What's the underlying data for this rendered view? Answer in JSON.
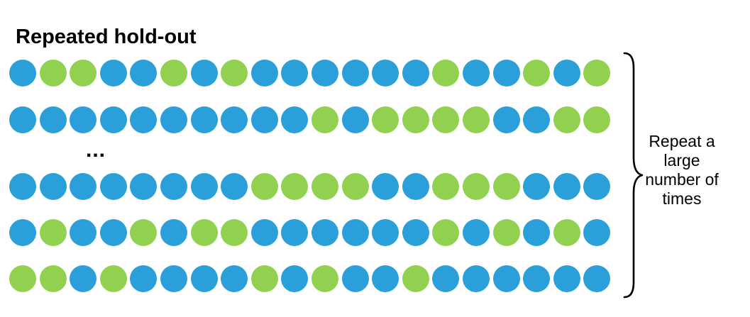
{
  "title": "Repeated hold-out",
  "ellipsis": "...",
  "caption": {
    "lines": [
      "Repeat a",
      "large",
      "number of",
      "times"
    ]
  },
  "colors": {
    "train": "#2B9FD9",
    "test": "#92D050",
    "text": "#000000",
    "background": "#FFFFFF"
  },
  "rows": [
    [
      "B",
      "G",
      "G",
      "B",
      "B",
      "G",
      "B",
      "G",
      "B",
      "B",
      "B",
      "B",
      "B",
      "B",
      "G",
      "B",
      "B",
      "G",
      "B",
      "G"
    ],
    [
      "B",
      "B",
      "B",
      "B",
      "B",
      "B",
      "B",
      "B",
      "B",
      "B",
      "G",
      "B",
      "G",
      "G",
      "G",
      "G",
      "B",
      "B",
      "G",
      "G"
    ],
    [
      "B",
      "B",
      "B",
      "B",
      "B",
      "B",
      "B",
      "B",
      "G",
      "G",
      "G",
      "G",
      "B",
      "B",
      "G",
      "G",
      "G",
      "B",
      "B",
      "B"
    ],
    [
      "B",
      "G",
      "B",
      "B",
      "G",
      "B",
      "G",
      "G",
      "B",
      "B",
      "B",
      "B",
      "B",
      "B",
      "G",
      "B",
      "G",
      "B",
      "G",
      "B"
    ],
    [
      "G",
      "G",
      "B",
      "G",
      "B",
      "B",
      "B",
      "B",
      "G",
      "B",
      "G",
      "B",
      "B",
      "G",
      "B",
      "B",
      "B",
      "B",
      "B",
      "B"
    ]
  ]
}
